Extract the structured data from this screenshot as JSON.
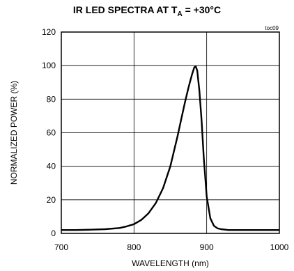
{
  "chart_data": {
    "type": "line",
    "title": {
      "prefix": "IR LED SPECTRA AT T",
      "subscript": "A",
      "suffix": " = +30°C"
    },
    "annotation": "toc09",
    "xlabel": "WAVELENGTH (nm)",
    "ylabel": "NORMALIZED POWER (%)",
    "xlim": [
      700,
      1000
    ],
    "ylim": [
      0,
      120
    ],
    "xticks": [
      "700",
      "800",
      "900",
      "1000"
    ],
    "yticks": [
      "0",
      "20",
      "40",
      "60",
      "80",
      "100",
      "120"
    ],
    "grid": true,
    "series": [
      {
        "x": [
          700,
          720,
          740,
          760,
          780,
          790,
          800,
          810,
          820,
          830,
          840,
          850,
          860,
          865,
          870,
          875,
          880,
          883,
          885,
          887,
          890,
          893,
          896,
          900,
          905,
          910,
          915,
          920,
          930,
          950,
          1000
        ],
        "y": [
          2,
          2,
          2.2,
          2.5,
          3.2,
          4.2,
          5.5,
          8,
          12,
          18,
          27,
          40,
          58,
          68,
          78,
          87,
          95,
          99,
          99.5,
          97,
          85,
          67,
          45,
          22,
          9,
          4.5,
          3,
          2.5,
          2,
          2,
          2
        ]
      }
    ]
  }
}
